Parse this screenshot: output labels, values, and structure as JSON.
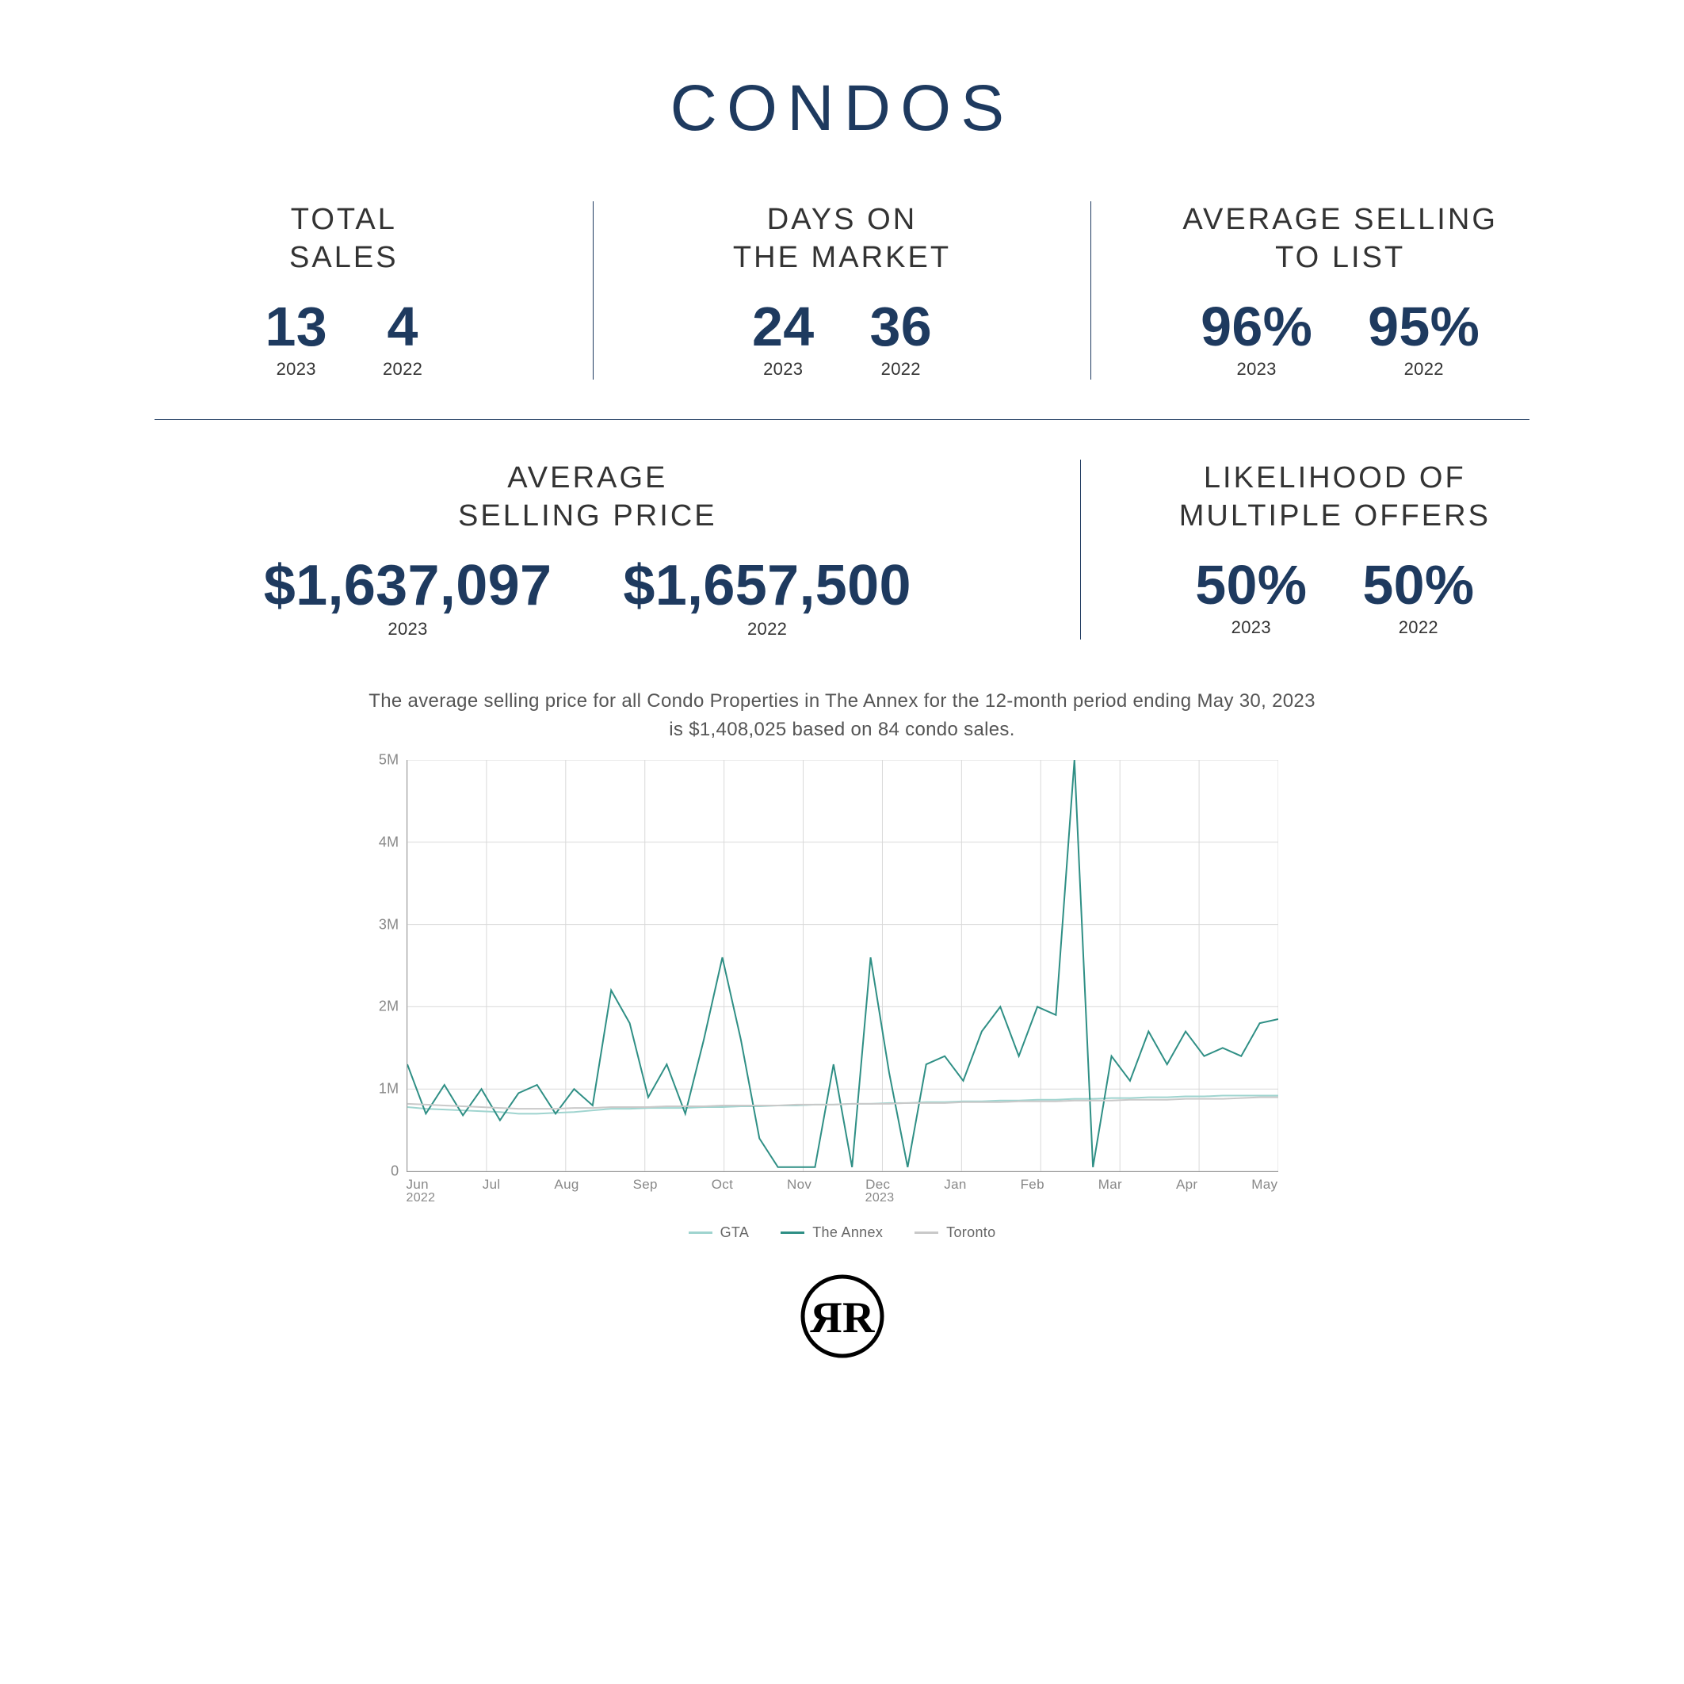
{
  "title": "CONDOS",
  "colors": {
    "primary": "#1e3a5f",
    "text": "#333333",
    "muted": "#888888",
    "background": "#ffffff"
  },
  "stats": {
    "total_sales": {
      "label": "TOTAL\nSALES",
      "y2023": "13",
      "y2022": "4"
    },
    "days_on_market": {
      "label": "DAYS ON\nTHE MARKET",
      "y2023": "24",
      "y2022": "36"
    },
    "sell_to_list": {
      "label": "AVERAGE SELLING\nTO LIST",
      "y2023": "96%",
      "y2022": "95%"
    },
    "avg_price": {
      "label": "AVERAGE\nSELLING PRICE",
      "y2023": "$1,637,097",
      "y2022": "$1,657,500"
    },
    "multi_offers": {
      "label": "LIKELIHOOD OF\nMULTIPLE OFFERS",
      "y2023": "50%",
      "y2022": "50%"
    }
  },
  "year_labels": {
    "current": "2023",
    "prior": "2022"
  },
  "chart": {
    "caption": "The average selling price for all Condo Properties in The Annex for the 12-month period ending May 30, 2023 is $1,408,025 based on 84 condo sales.",
    "type": "line",
    "ylim": [
      0,
      5000000
    ],
    "ytick_labels": [
      "0",
      "1M",
      "2M",
      "3M",
      "4M",
      "5M"
    ],
    "ytick_values": [
      0,
      1000000,
      2000000,
      3000000,
      4000000,
      5000000
    ],
    "x_labels": [
      "Jun",
      "Jul",
      "Aug",
      "Sep",
      "Oct",
      "Nov",
      "Dec",
      "Jan",
      "Feb",
      "Mar",
      "Apr",
      "May"
    ],
    "x_sublabels_left": "2022",
    "x_sublabels_right": "2023",
    "grid_color": "#d9d9d9",
    "background_color": "#ffffff",
    "line_width": 2,
    "series": [
      {
        "name": "GTA",
        "color": "#9fd4cf",
        "values": [
          780000,
          760000,
          750000,
          740000,
          730000,
          720000,
          700000,
          700000,
          710000,
          720000,
          740000,
          760000,
          760000,
          770000,
          770000,
          770000,
          780000,
          780000,
          790000,
          790000,
          800000,
          800000,
          810000,
          810000,
          820000,
          820000,
          830000,
          830000,
          840000,
          840000,
          850000,
          850000,
          860000,
          860000,
          870000,
          870000,
          880000,
          880000,
          890000,
          890000,
          900000,
          900000,
          910000,
          910000,
          920000,
          920000,
          920000,
          920000
        ]
      },
      {
        "name": "The Annex",
        "color": "#2f8f85",
        "values": [
          1300000,
          700000,
          1050000,
          680000,
          1000000,
          620000,
          950000,
          1050000,
          700000,
          1000000,
          800000,
          2200000,
          1800000,
          900000,
          1300000,
          700000,
          1600000,
          2600000,
          1600000,
          400000,
          50000,
          50000,
          50000,
          1300000,
          50000,
          2600000,
          1200000,
          50000,
          1300000,
          1400000,
          1100000,
          1700000,
          2000000,
          1400000,
          2000000,
          1900000,
          5000000,
          50000,
          1400000,
          1100000,
          1700000,
          1300000,
          1700000,
          1400000,
          1500000,
          1400000,
          1800000,
          1850000
        ]
      },
      {
        "name": "Toronto",
        "color": "#c9c9c9",
        "values": [
          820000,
          810000,
          800000,
          790000,
          780000,
          770000,
          760000,
          760000,
          760000,
          770000,
          770000,
          780000,
          780000,
          780000,
          790000,
          790000,
          790000,
          800000,
          800000,
          800000,
          800000,
          810000,
          810000,
          810000,
          820000,
          820000,
          820000,
          830000,
          830000,
          830000,
          840000,
          840000,
          840000,
          850000,
          850000,
          850000,
          860000,
          860000,
          860000,
          870000,
          870000,
          870000,
          880000,
          880000,
          880000,
          890000,
          900000,
          900000
        ]
      }
    ]
  },
  "logo": {
    "letters": "RR"
  }
}
